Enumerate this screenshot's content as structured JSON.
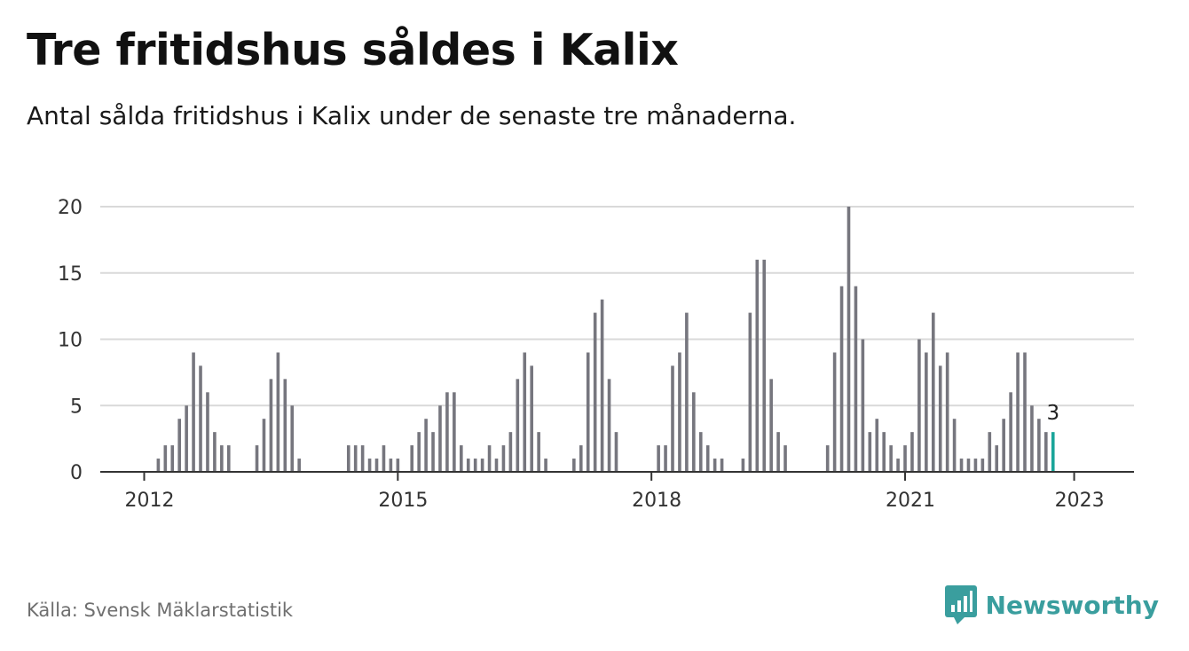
{
  "title": "Tre fritidshus såldes i Kalix",
  "subtitle": "Antal sålda fritidshus i Kalix under de senaste tre månaderna.",
  "source": "Källa: Svensk Mäklarstatistik",
  "brand": {
    "name": "Newsworthy",
    "icon": "newsworthy-logo-icon",
    "color": "#3a9e9e"
  },
  "colors": {
    "bar": "#76767e",
    "highlight": "#1aa59a",
    "grid": "#d9d9d9",
    "axis": "#333333"
  },
  "chart_data": {
    "type": "bar",
    "x_start": "2012-01",
    "x_end": "2023-01",
    "values": [
      0,
      0,
      1,
      2,
      2,
      4,
      5,
      9,
      8,
      6,
      3,
      2,
      2,
      0,
      0,
      0,
      2,
      4,
      7,
      9,
      7,
      5,
      1,
      0,
      0,
      0,
      0,
      0,
      0,
      2,
      2,
      2,
      1,
      1,
      2,
      1,
      1,
      0,
      2,
      3,
      4,
      3,
      5,
      6,
      6,
      2,
      1,
      1,
      1,
      2,
      1,
      2,
      3,
      7,
      9,
      8,
      3,
      1,
      0,
      0,
      0,
      1,
      2,
      9,
      12,
      13,
      7,
      3,
      0,
      0,
      0,
      0,
      0,
      2,
      2,
      8,
      9,
      12,
      6,
      3,
      2,
      1,
      1,
      0,
      0,
      1,
      12,
      16,
      16,
      7,
      3,
      2,
      0,
      0,
      0,
      0,
      0,
      2,
      9,
      14,
      20,
      14,
      10,
      3,
      4,
      3,
      2,
      1,
      2,
      3,
      10,
      9,
      12,
      8,
      9,
      4,
      1,
      1,
      1,
      1,
      3,
      2,
      4,
      6,
      9,
      9,
      5,
      4,
      3,
      3
    ],
    "highlight_last": true,
    "last_label": "3",
    "xticks": [
      "2012",
      "2015",
      "2018",
      "2021",
      "2023"
    ],
    "yticks": [
      0,
      5,
      10,
      15,
      20
    ],
    "ylim": [
      0,
      20
    ],
    "grid": true,
    "legend": "none"
  }
}
